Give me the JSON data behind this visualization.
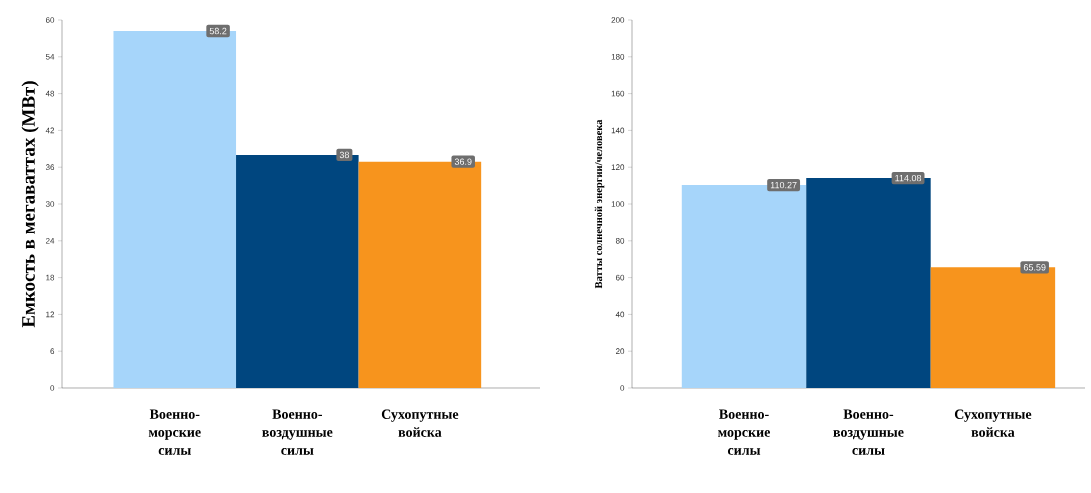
{
  "chart_data": [
    {
      "type": "bar",
      "ylabel": "Емкость в мегаваттах (МВт)",
      "categories": [
        "Военно-морские силы",
        "Военно-воздушные силы",
        "Сухопутные войска"
      ],
      "values": [
        58.2,
        38,
        36.9
      ],
      "colors": [
        "#a6d5fa",
        "#00467f",
        "#f7941d"
      ],
      "value_labels": [
        "58.2",
        "38",
        "36.9"
      ],
      "ylim": [
        0,
        60
      ],
      "yticks": [
        0,
        6,
        12,
        18,
        24,
        30,
        36,
        42,
        48,
        54,
        60
      ]
    },
    {
      "type": "bar",
      "ylabel": "Ватты солнечной энергии/человека",
      "categories": [
        "Военно-морские силы",
        "Военно-воздушные силы",
        "Сухопутные войска"
      ],
      "values": [
        110.27,
        114.08,
        65.59
      ],
      "colors": [
        "#a6d5fa",
        "#00467f",
        "#f7941d"
      ],
      "value_labels": [
        "110.27",
        "114.08",
        "65.59"
      ],
      "ylim": [
        0,
        200
      ],
      "yticks": [
        0,
        20,
        40,
        60,
        80,
        100,
        120,
        140,
        160,
        180,
        200
      ]
    }
  ]
}
